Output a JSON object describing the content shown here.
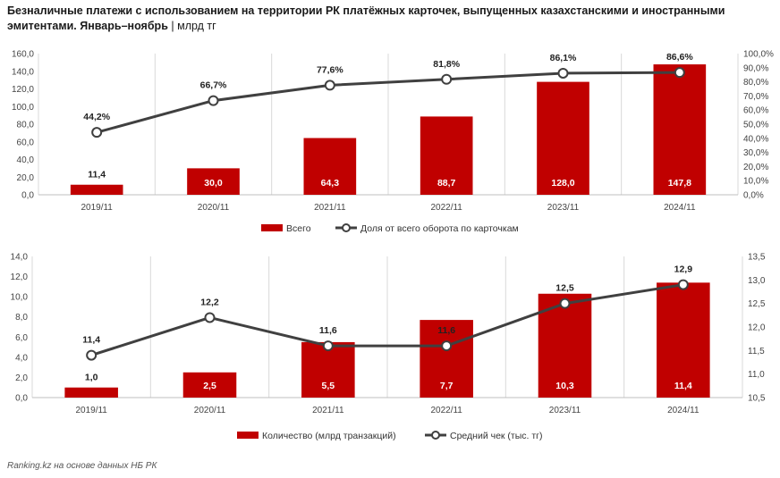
{
  "title": {
    "main": "Безналичные платежи с использованием на территории РК платёжных карточек, выпущенных казахстанскими и иностранными эмитентами. Январь–ноябрь",
    "separator": "|",
    "unit": "млрд тг"
  },
  "source": "Ranking.kz на основе данных НБ РК",
  "colors": {
    "bar": "#c00000",
    "line": "#404040",
    "marker_fill": "#ffffff",
    "grid": "#d9d9d9"
  },
  "chart_data": [
    {
      "type": "bar",
      "categories": [
        "2019/11",
        "2020/11",
        "2021/11",
        "2022/11",
        "2023/11",
        "2024/11"
      ],
      "series": [
        {
          "name": "Всего",
          "type": "bar",
          "axis": "left",
          "values": [
            11.4,
            30.0,
            64.3,
            88.7,
            128.0,
            147.8
          ],
          "labels": [
            "11,4",
            "30,0",
            "64,3",
            "88,7",
            "128,0",
            "147,8"
          ]
        },
        {
          "name": "Доля от всего оборота по карточкам",
          "type": "line",
          "axis": "right",
          "values": [
            44.2,
            66.7,
            77.6,
            81.8,
            86.1,
            86.6
          ],
          "labels": [
            "44,2%",
            "66,7%",
            "77,6%",
            "81,8%",
            "86,1%",
            "86,6%"
          ]
        }
      ],
      "ylim": [
        0,
        160
      ],
      "yticks": [
        "0,0",
        "20,0",
        "40,0",
        "60,0",
        "80,0",
        "100,0",
        "120,0",
        "140,0",
        "160,0"
      ],
      "y2lim": [
        0,
        100
      ],
      "y2ticks": [
        "0,0%",
        "10,0%",
        "20,0%",
        "30,0%",
        "40,0%",
        "50,0%",
        "60,0%",
        "70,0%",
        "80,0%",
        "90,0%",
        "100,0%"
      ],
      "grid": "vertical",
      "legend": "bottom"
    },
    {
      "type": "bar",
      "categories": [
        "2019/11",
        "2020/11",
        "2021/11",
        "2022/11",
        "2023/11",
        "2024/11"
      ],
      "series": [
        {
          "name": "Количество (млрд транзакций)",
          "type": "bar",
          "axis": "left",
          "values": [
            1.0,
            2.5,
            5.5,
            7.7,
            10.3,
            11.4
          ],
          "labels": [
            "1,0",
            "2,5",
            "5,5",
            "7,7",
            "10,3",
            "11,4"
          ]
        },
        {
          "name": "Средний чек (тыс. тг)",
          "type": "line",
          "axis": "right",
          "values": [
            11.4,
            12.2,
            11.6,
            11.6,
            12.5,
            12.9
          ],
          "labels": [
            "11,4",
            "12,2",
            "11,6",
            "11,6",
            "12,5",
            "12,9"
          ]
        }
      ],
      "ylim": [
        0,
        14
      ],
      "yticks": [
        "0,0",
        "2,0",
        "4,0",
        "6,0",
        "8,0",
        "10,0",
        "12,0",
        "14,0"
      ],
      "y2lim": [
        10.5,
        13.5
      ],
      "y2ticks": [
        "10,5",
        "11,0",
        "11,5",
        "12,0",
        "12,5",
        "13,0",
        "13,5"
      ],
      "grid": "vertical",
      "legend": "bottom"
    }
  ]
}
